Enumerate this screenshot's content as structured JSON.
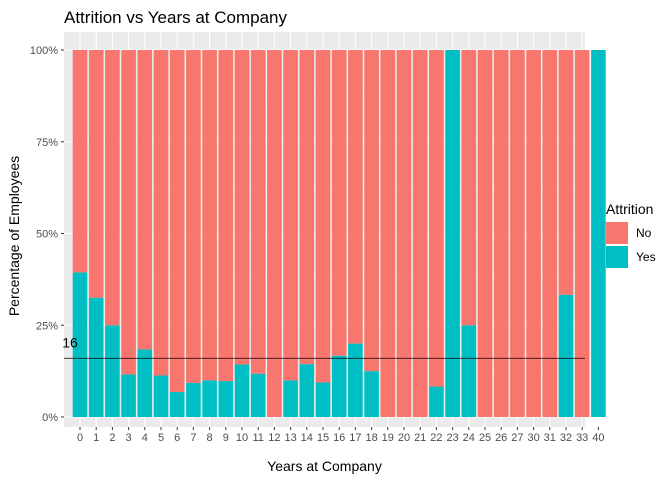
{
  "chart_data": {
    "type": "bar",
    "stacked": "fill",
    "title": "Attrition vs Years at Company",
    "xlabel": "Years at Company",
    "ylabel": "Percentage of Employees",
    "ylim": [
      0,
      1
    ],
    "y_ticks": [
      "0%",
      "25%",
      "50%",
      "75%",
      "100%"
    ],
    "y_tick_values": [
      0,
      0.25,
      0.5,
      0.75,
      1.0
    ],
    "categories": [
      "0",
      "1",
      "2",
      "3",
      "4",
      "5",
      "6",
      "7",
      "8",
      "9",
      "10",
      "11",
      "12",
      "13",
      "14",
      "15",
      "16",
      "17",
      "18",
      "19",
      "20",
      "21",
      "22",
      "23",
      "24",
      "25",
      "26",
      "27",
      "30",
      "31",
      "32",
      "33",
      "40"
    ],
    "series": [
      {
        "name": "No",
        "color": "#F8766D",
        "values": [
          0.606,
          0.675,
          0.75,
          0.884,
          0.816,
          0.887,
          0.932,
          0.907,
          0.9,
          0.902,
          0.857,
          0.882,
          1,
          0.9,
          0.856,
          0.906,
          0.833,
          0.8,
          0.875,
          1,
          1,
          1,
          0.917,
          0,
          0.75,
          1,
          1,
          1,
          1,
          1,
          0.667,
          1,
          0
        ]
      },
      {
        "name": "Yes",
        "color": "#00BFC4",
        "values": [
          0.394,
          0.325,
          0.25,
          0.116,
          0.184,
          0.113,
          0.068,
          0.093,
          0.1,
          0.098,
          0.143,
          0.118,
          0,
          0.1,
          0.144,
          0.094,
          0.167,
          0.2,
          0.125,
          0,
          0,
          0,
          0.083,
          1,
          0.25,
          0,
          0,
          0,
          0,
          0,
          0.333,
          0,
          1
        ]
      }
    ],
    "legend": {
      "title": "Attrition",
      "position": "right"
    },
    "reference_line": {
      "value": 0.16,
      "label": "16"
    },
    "grid": true
  }
}
